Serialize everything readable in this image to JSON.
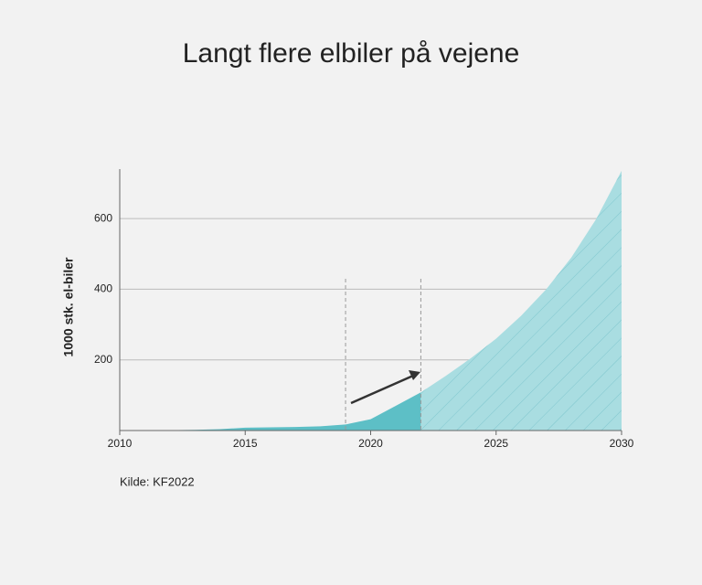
{
  "chart_data": {
    "type": "area",
    "title": "Langt flere elbiler på vejene",
    "y_label": "1000 stk. el-biler",
    "source": "Kilde: KF2022",
    "x": [
      2010,
      2011,
      2012,
      2013,
      2014,
      2015,
      2016,
      2017,
      2018,
      2019,
      2020,
      2021,
      2022,
      2023,
      2024,
      2025,
      2026,
      2027,
      2028,
      2029,
      2030
    ],
    "series": [
      {
        "color": "#5dbfc6",
        "hatch": false,
        "values": [
          0,
          0.5,
          1,
          2,
          4,
          8,
          9,
          10,
          12,
          17,
          32,
          70,
          108,
          null,
          null,
          null,
          null,
          null,
          null,
          null,
          null
        ]
      },
      {
        "color": "#a9dde1",
        "hatch": true,
        "values": [
          null,
          null,
          null,
          null,
          null,
          null,
          null,
          null,
          null,
          null,
          null,
          null,
          108,
          155,
          205,
          260,
          325,
          400,
          490,
          600,
          735
        ]
      }
    ],
    "vlines": [
      2019,
      2022
    ],
    "xlim": [
      2010,
      2030
    ],
    "xticks": [
      2010,
      2015,
      2020,
      2025,
      2030
    ],
    "ylim": [
      0,
      740
    ],
    "yticks": [
      200,
      400,
      600
    ],
    "grid": true
  }
}
